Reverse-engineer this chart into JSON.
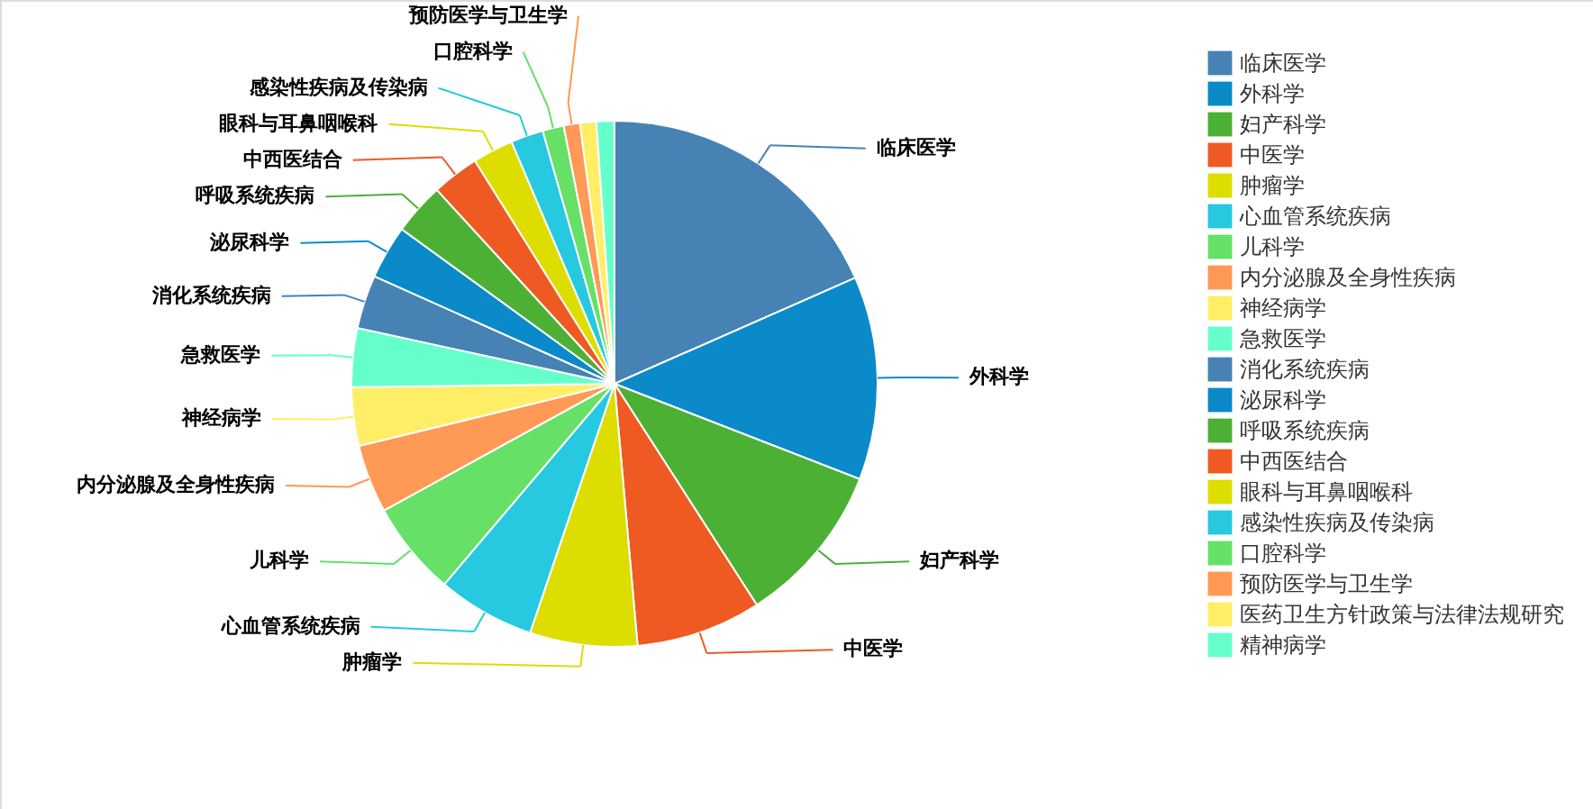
{
  "chart_data": {
    "type": "pie",
    "categories": [
      "临床医学",
      "外科学",
      "妇产科学",
      "中医学",
      "肿瘤学",
      "心血管系统疾病",
      "儿科学",
      "内分泌腺及全身性疾病",
      "神经病学",
      "急救医学",
      "消化系统疾病",
      "泌尿科学",
      "呼吸系统疾病",
      "中西医结合",
      "眼科与耳鼻咽喉科",
      "感染性疾病及传染病",
      "口腔科学",
      "预防医学与卫生学",
      "医药卫生方针政策与法律法规研究",
      "精神病学"
    ],
    "values": [
      18.4,
      12.5,
      10,
      7.7,
      6.6,
      6,
      5.8,
      4.2,
      3.6,
      3.6,
      3.3,
      3.3,
      3.2,
      2.9,
      2.5,
      2,
      1.3,
      1,
      1,
      1.1
    ],
    "colors": [
      "#4682b4",
      "#0a8ac8",
      "#4cb034",
      "#ee5a22",
      "#dddd00",
      "#26c9e0",
      "#66e066",
      "#ff9955",
      "#ffee66",
      "#66ffcc",
      "#4682b4",
      "#0a8ac8",
      "#4cb034",
      "#ee5a22",
      "#dddd00",
      "#26c9e0",
      "#66e066",
      "#ff9955",
      "#ffee66",
      "#66ffcc"
    ],
    "legend": "right"
  }
}
